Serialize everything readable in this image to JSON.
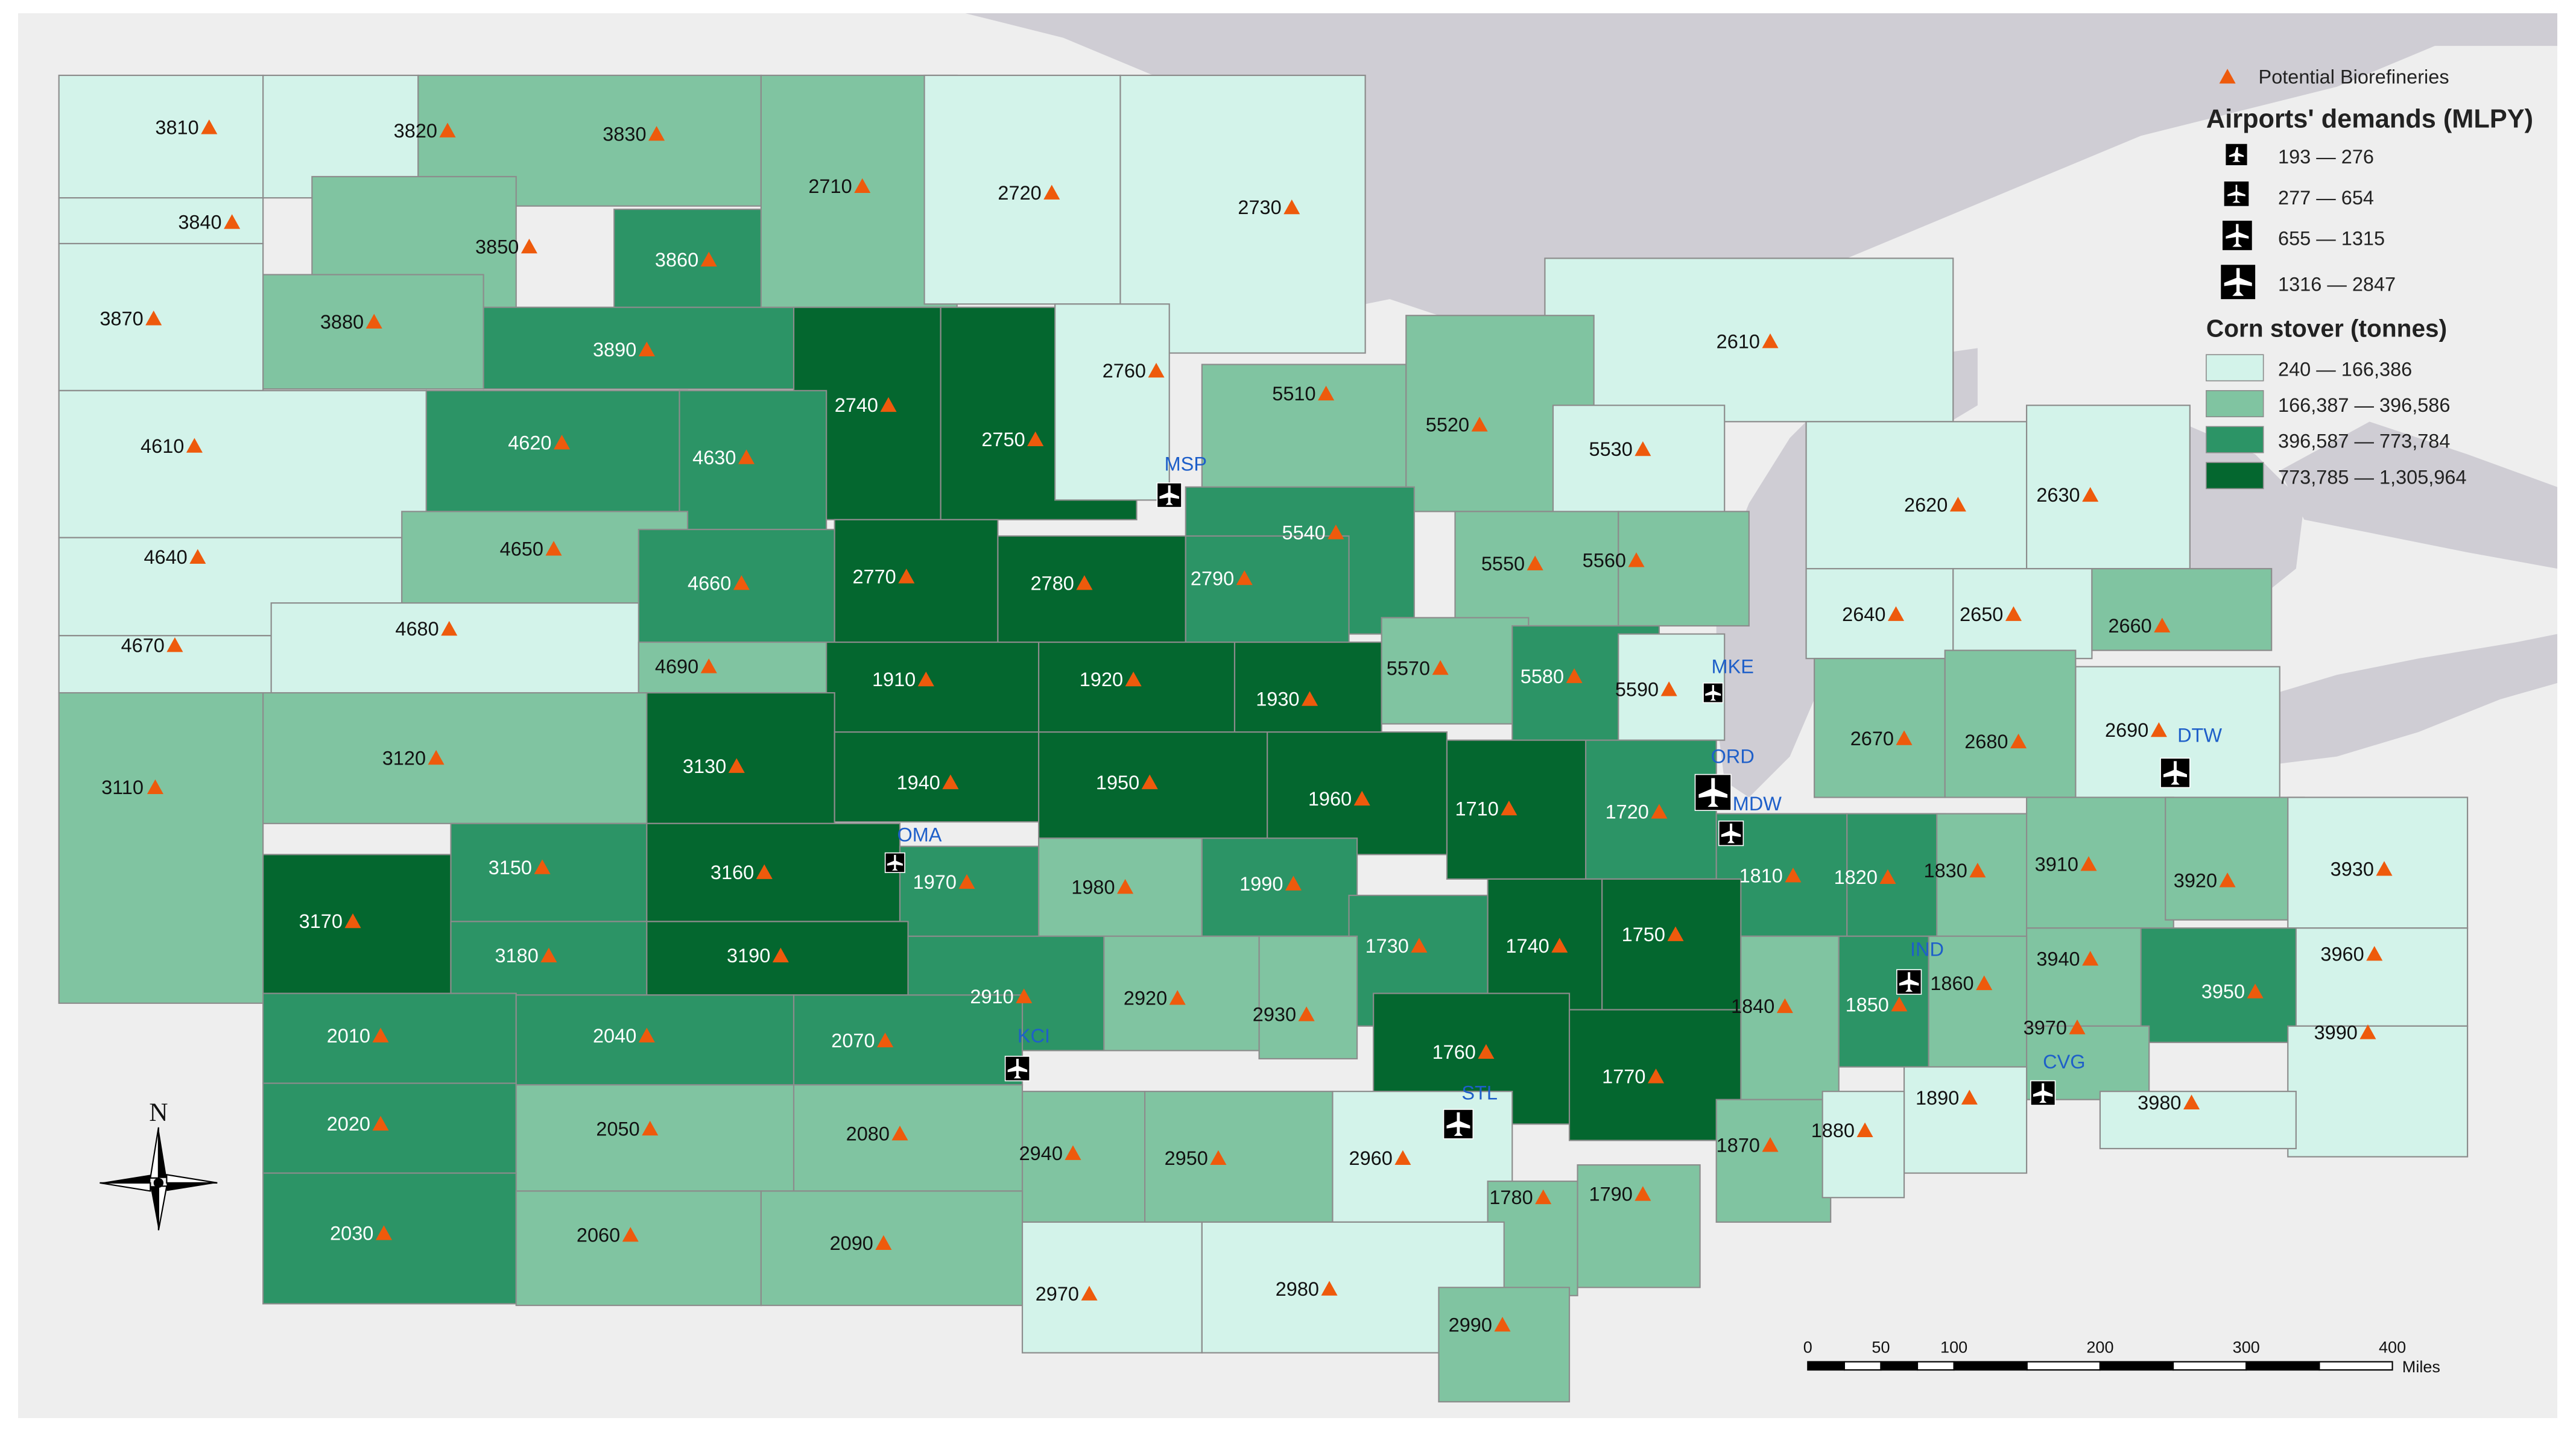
{
  "colors": {
    "background": "#eeeeee",
    "lakes": "#cfcdd4",
    "class1": "#d3f3ea",
    "class2": "#80c4a1",
    "class3": "#2c9466",
    "class4": "#04672f",
    "triangle": "#ee5a0c",
    "airport_text": "#1e5fc9",
    "border": "#8c8c8c"
  },
  "legend": {
    "biorefinery": "Potential Biorefineries",
    "airports_title": "Airports' demands (MLPY)",
    "airport_classes": [
      "193 — 276",
      "277 — 654",
      "655 — 1315",
      "1316 — 2847"
    ],
    "stover_title": "Corn stover (tonnes)",
    "stover_classes": [
      "240 — 166,386",
      "166,387 — 396,586",
      "396,587 — 773,784",
      "773,785 — 1,305,964"
    ]
  },
  "north_label": "N",
  "scale": {
    "ticks": [
      "0",
      "50",
      "100",
      "200",
      "300",
      "400"
    ],
    "tick_miles": [
      0,
      50,
      100,
      200,
      300,
      400
    ],
    "unit": "Miles"
  },
  "airports": [
    {
      "code": "MSP",
      "class": 2
    },
    {
      "code": "MKE",
      "class": 1
    },
    {
      "code": "ORD",
      "class": 4
    },
    {
      "code": "MDW",
      "class": 2
    },
    {
      "code": "DTW",
      "class": 3
    },
    {
      "code": "OMA",
      "class": 1
    },
    {
      "code": "KCI",
      "class": 2
    },
    {
      "code": "IND",
      "class": 2
    },
    {
      "code": "STL",
      "class": 3
    },
    {
      "code": "CVG",
      "class": 2
    }
  ],
  "districts": [
    {
      "id": "3810",
      "cls": 1
    },
    {
      "id": "3820",
      "cls": 1
    },
    {
      "id": "3830",
      "cls": 2
    },
    {
      "id": "3840",
      "cls": 1
    },
    {
      "id": "3850",
      "cls": 2
    },
    {
      "id": "3860",
      "cls": 3
    },
    {
      "id": "3870",
      "cls": 1
    },
    {
      "id": "3880",
      "cls": 2
    },
    {
      "id": "3890",
      "cls": 3
    },
    {
      "id": "2710",
      "cls": 2
    },
    {
      "id": "2720",
      "cls": 1
    },
    {
      "id": "2730",
      "cls": 1
    },
    {
      "id": "2740",
      "cls": 4
    },
    {
      "id": "2750",
      "cls": 4
    },
    {
      "id": "2760",
      "cls": 1
    },
    {
      "id": "2610",
      "cls": 1
    },
    {
      "id": "4610",
      "cls": 1
    },
    {
      "id": "4620",
      "cls": 3
    },
    {
      "id": "4630",
      "cls": 3
    },
    {
      "id": "5510",
      "cls": 2
    },
    {
      "id": "5520",
      "cls": 2
    },
    {
      "id": "5530",
      "cls": 1
    },
    {
      "id": "4640",
      "cls": 1
    },
    {
      "id": "4650",
      "cls": 2
    },
    {
      "id": "5540",
      "cls": 3
    },
    {
      "id": "2620",
      "cls": 1
    },
    {
      "id": "2630",
      "cls": 1
    },
    {
      "id": "4660",
      "cls": 3
    },
    {
      "id": "2770",
      "cls": 4
    },
    {
      "id": "2780",
      "cls": 4
    },
    {
      "id": "2790",
      "cls": 3
    },
    {
      "id": "5550",
      "cls": 2
    },
    {
      "id": "5560",
      "cls": 2
    },
    {
      "id": "4670",
      "cls": 1
    },
    {
      "id": "4680",
      "cls": 1
    },
    {
      "id": "2640",
      "cls": 1
    },
    {
      "id": "2650",
      "cls": 1
    },
    {
      "id": "2660",
      "cls": 2
    },
    {
      "id": "4690",
      "cls": 2
    },
    {
      "id": "1910",
      "cls": 4
    },
    {
      "id": "1920",
      "cls": 4
    },
    {
      "id": "1930",
      "cls": 4
    },
    {
      "id": "5570",
      "cls": 2
    },
    {
      "id": "5580",
      "cls": 3
    },
    {
      "id": "5590",
      "cls": 1
    },
    {
      "id": "2690",
      "cls": 1
    },
    {
      "id": "2670",
      "cls": 2
    },
    {
      "id": "2680",
      "cls": 2
    },
    {
      "id": "3110",
      "cls": 2
    },
    {
      "id": "3120",
      "cls": 2
    },
    {
      "id": "3130",
      "cls": 4
    },
    {
      "id": "1940",
      "cls": 4
    },
    {
      "id": "1950",
      "cls": 4
    },
    {
      "id": "1960",
      "cls": 4
    },
    {
      "id": "1710",
      "cls": 4
    },
    {
      "id": "1720",
      "cls": 3
    },
    {
      "id": "3150",
      "cls": 3
    },
    {
      "id": "3160",
      "cls": 4
    },
    {
      "id": "1970",
      "cls": 3
    },
    {
      "id": "1980",
      "cls": 2
    },
    {
      "id": "1990",
      "cls": 3
    },
    {
      "id": "1810",
      "cls": 3
    },
    {
      "id": "1820",
      "cls": 3
    },
    {
      "id": "1830",
      "cls": 2
    },
    {
      "id": "3910",
      "cls": 2
    },
    {
      "id": "3920",
      "cls": 2
    },
    {
      "id": "3930",
      "cls": 1
    },
    {
      "id": "3170",
      "cls": 4
    },
    {
      "id": "3180",
      "cls": 3
    },
    {
      "id": "3190",
      "cls": 4
    },
    {
      "id": "1730",
      "cls": 3
    },
    {
      "id": "1740",
      "cls": 4
    },
    {
      "id": "1750",
      "cls": 4
    },
    {
      "id": "3940",
      "cls": 2
    },
    {
      "id": "3960",
      "cls": 1
    },
    {
      "id": "2910",
      "cls": 3
    },
    {
      "id": "2920",
      "cls": 2
    },
    {
      "id": "2930",
      "cls": 2
    },
    {
      "id": "1840",
      "cls": 2
    },
    {
      "id": "1850",
      "cls": 3
    },
    {
      "id": "1860",
      "cls": 2
    },
    {
      "id": "3950",
      "cls": 3
    },
    {
      "id": "2010",
      "cls": 3
    },
    {
      "id": "2040",
      "cls": 3
    },
    {
      "id": "2070",
      "cls": 3
    },
    {
      "id": "1760",
      "cls": 4
    },
    {
      "id": "1770",
      "cls": 4
    },
    {
      "id": "3970",
      "cls": 2
    },
    {
      "id": "3990",
      "cls": 1
    },
    {
      "id": "1890",
      "cls": 1
    },
    {
      "id": "2020",
      "cls": 3
    },
    {
      "id": "2050",
      "cls": 2
    },
    {
      "id": "2080",
      "cls": 2
    },
    {
      "id": "2940",
      "cls": 2
    },
    {
      "id": "2950",
      "cls": 2
    },
    {
      "id": "2960",
      "cls": 1
    },
    {
      "id": "1870",
      "cls": 2
    },
    {
      "id": "1880",
      "cls": 1
    },
    {
      "id": "3980",
      "cls": 1
    },
    {
      "id": "2030",
      "cls": 3
    },
    {
      "id": "2060",
      "cls": 2
    },
    {
      "id": "2090",
      "cls": 2
    },
    {
      "id": "1780",
      "cls": 2
    },
    {
      "id": "1790",
      "cls": 2
    },
    {
      "id": "2970",
      "cls": 1
    },
    {
      "id": "2980",
      "cls": 1
    },
    {
      "id": "2990",
      "cls": 2
    }
  ]
}
